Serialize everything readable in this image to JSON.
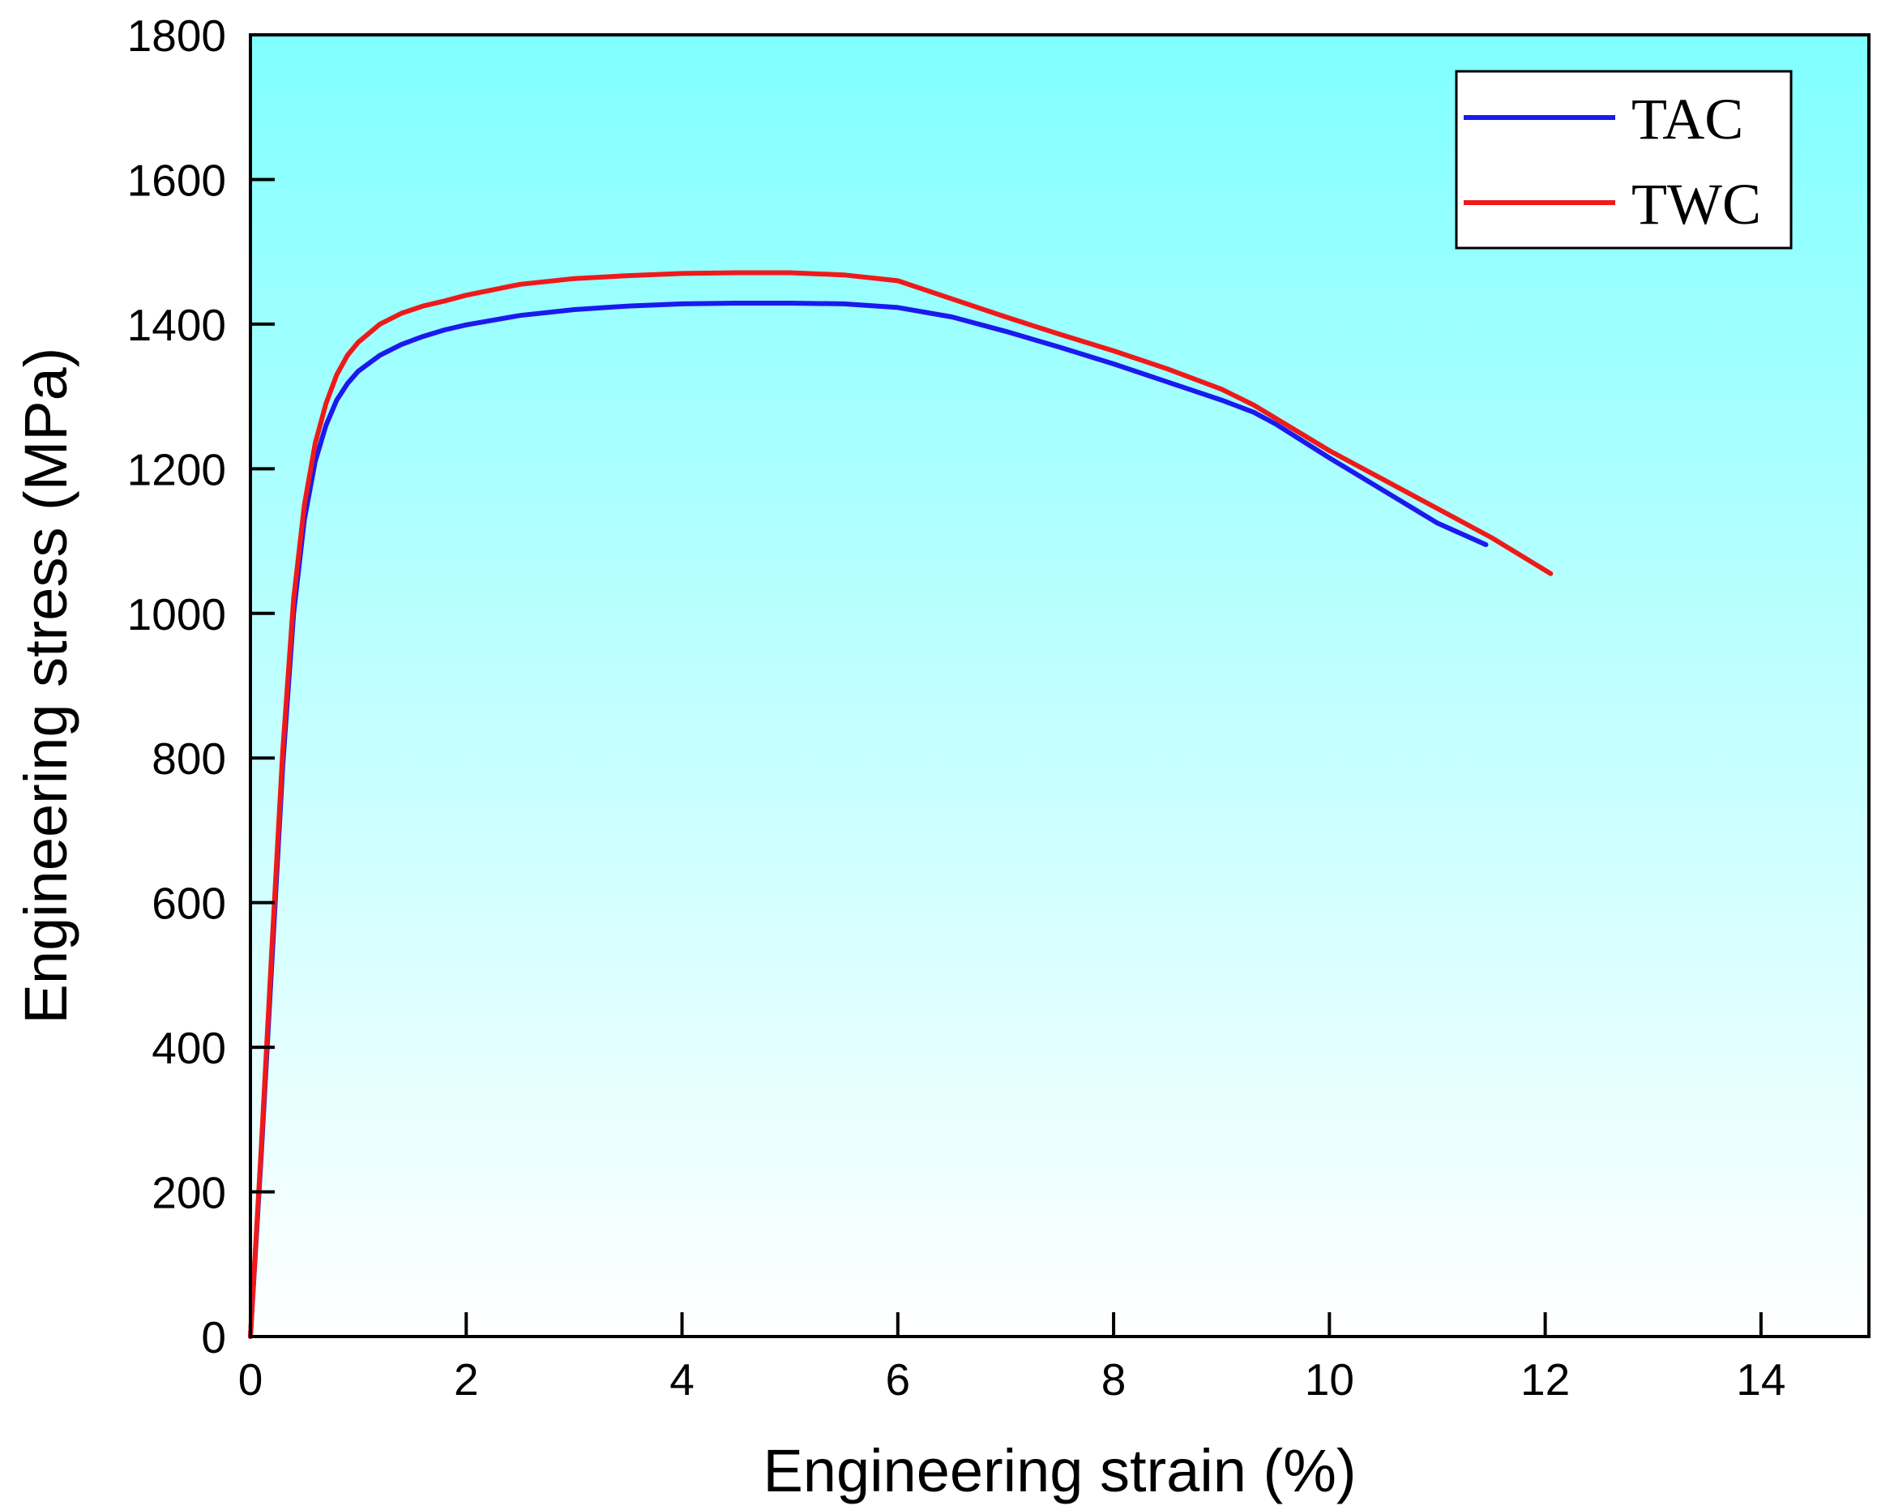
{
  "chart_data": {
    "type": "line",
    "title": "",
    "xlabel": "Engineering strain (%)",
    "ylabel": "Engineering stress (MPa)",
    "xlim": [
      0,
      15
    ],
    "ylim": [
      0,
      1800
    ],
    "xticks": [
      0,
      2,
      4,
      6,
      8,
      10,
      12,
      14
    ],
    "yticks": [
      0,
      200,
      400,
      600,
      800,
      1000,
      1200,
      1400,
      1600,
      1800
    ],
    "legend_position": "top-right",
    "background": "gradient cyan (top) to white (bottom)",
    "series": [
      {
        "name": "TAC",
        "color": "#1a1aee",
        "x": [
          0,
          0.1,
          0.2,
          0.3,
          0.4,
          0.5,
          0.6,
          0.7,
          0.8,
          0.9,
          1.0,
          1.2,
          1.4,
          1.6,
          1.8,
          2.0,
          2.5,
          3.0,
          3.5,
          4.0,
          4.5,
          5.0,
          5.5,
          6.0,
          6.5,
          7.0,
          7.5,
          8.0,
          8.5,
          9.0,
          9.3,
          9.5,
          10.0,
          10.5,
          11.0,
          11.45
        ],
        "y": [
          0,
          250,
          520,
          790,
          1000,
          1130,
          1210,
          1260,
          1295,
          1318,
          1335,
          1357,
          1372,
          1383,
          1392,
          1399,
          1412,
          1420,
          1425,
          1428,
          1429,
          1429,
          1428,
          1423,
          1410,
          1390,
          1368,
          1345,
          1320,
          1295,
          1278,
          1262,
          1215,
          1170,
          1125,
          1095
        ]
      },
      {
        "name": "TWC",
        "color": "#ee1a1a",
        "x": [
          0,
          0.1,
          0.2,
          0.3,
          0.4,
          0.5,
          0.6,
          0.7,
          0.8,
          0.9,
          1.0,
          1.2,
          1.4,
          1.6,
          1.8,
          2.0,
          2.5,
          3.0,
          3.5,
          4.0,
          4.5,
          5.0,
          5.5,
          6.0,
          6.5,
          7.0,
          7.5,
          8.0,
          8.5,
          9.0,
          9.3,
          9.5,
          10.0,
          10.5,
          11.0,
          11.5,
          12.05
        ],
        "y": [
          0,
          260,
          540,
          810,
          1020,
          1150,
          1235,
          1290,
          1330,
          1357,
          1375,
          1400,
          1415,
          1425,
          1432,
          1440,
          1455,
          1463,
          1467,
          1470,
          1471,
          1471,
          1468,
          1460,
          1435,
          1410,
          1386,
          1363,
          1338,
          1310,
          1288,
          1270,
          1225,
          1185,
          1145,
          1105,
          1055
        ]
      }
    ]
  }
}
